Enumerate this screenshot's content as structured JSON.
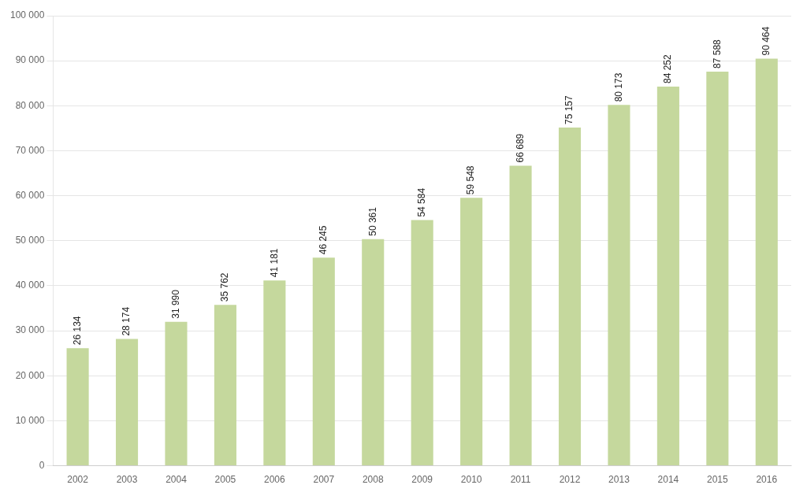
{
  "chart_data": {
    "type": "bar",
    "categories": [
      "2002",
      "2003",
      "2004",
      "2005",
      "2006",
      "2007",
      "2008",
      "2009",
      "2010",
      "2011",
      "2012",
      "2013",
      "2014",
      "2015",
      "2016"
    ],
    "values": [
      26134,
      28174,
      31990,
      35762,
      41181,
      46245,
      50361,
      54584,
      59548,
      66689,
      75157,
      80173,
      84252,
      87588,
      90464
    ],
    "value_labels": [
      "26 134",
      "28 174",
      "31 990",
      "35 762",
      "41 181",
      "46 245",
      "50 361",
      "54 584",
      "59 548",
      "66 689",
      "75 157",
      "80 173",
      "84 252",
      "87 588",
      "90 464"
    ],
    "data_labels": true,
    "color": "#c5d89d",
    "ylim": [
      0,
      100000
    ],
    "yticks": [
      0,
      {
        "value": 10000,
        "label": "10 000"
      },
      {
        "value": 20000,
        "label": "20 000"
      },
      {
        "value": 30000,
        "label": "30 000"
      },
      {
        "value": 40000,
        "label": "40 000"
      },
      {
        "value": 50000,
        "label": "50 000"
      },
      {
        "value": 60000,
        "label": "60 000"
      },
      {
        "value": 70000,
        "label": "70 000"
      },
      {
        "value": 80000,
        "label": "80 000"
      },
      {
        "value": 90000,
        "label": "90 000"
      },
      {
        "value": 100000,
        "label": "100 000"
      }
    ],
    "grid": true
  }
}
